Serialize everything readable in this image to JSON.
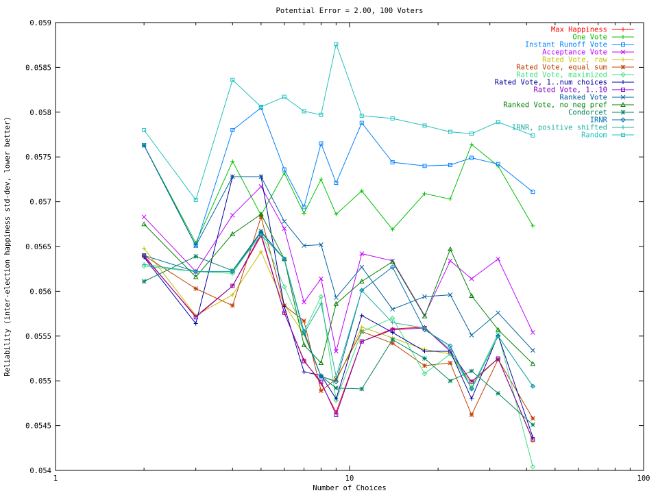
{
  "chart_data": {
    "type": "line",
    "title": "Potential Error = 2.00, 100 Voters",
    "xlabel": "Number of Choices",
    "ylabel": "Reliability (inter-election happiness std-dev, lower better)",
    "xscale": "log",
    "xlim": [
      1,
      100
    ],
    "ylim": [
      0.054,
      0.059
    ],
    "x_ticks": [
      "1",
      "10",
      "100"
    ],
    "y_ticks": [
      "0.054",
      "0.0545",
      "0.055",
      "0.0555",
      "0.056",
      "0.0565",
      "0.057",
      "0.0575",
      "0.058",
      "0.0585",
      "0.059"
    ],
    "grid": false,
    "legend_position": "top-right",
    "x": [
      2,
      3,
      4,
      5,
      6,
      7,
      8,
      9,
      11,
      14,
      18,
      22,
      26,
      32,
      42
    ],
    "series": [
      {
        "name": "Max Happiness",
        "color": "#ff0000",
        "marker": "plus",
        "values": [
          0.05639,
          0.05572,
          0.05606,
          0.05662,
          0.05576,
          0.05523,
          0.05497,
          0.05465,
          0.05544,
          0.05558,
          0.0556,
          0.05533,
          0.05499,
          0.05525,
          0.05434
        ]
      },
      {
        "name": "One Vote",
        "color": "#00c000",
        "marker": "plus",
        "values": [
          0.05763,
          0.05654,
          0.05745,
          0.05685,
          0.05732,
          0.05687,
          0.05725,
          0.05686,
          0.05712,
          0.05669,
          0.05709,
          0.05703,
          0.05764,
          0.0574,
          0.05673
        ]
      },
      {
        "name": "Instant Runoff Vote",
        "color": "#0080ff",
        "marker": "square",
        "values": [
          0.05763,
          0.05651,
          0.0578,
          0.05805,
          0.05736,
          0.05694,
          0.05765,
          0.05721,
          0.05788,
          0.05744,
          0.0574,
          0.05741,
          0.05749,
          0.05742,
          0.05711
        ]
      },
      {
        "name": "Acceptance Vote",
        "color": "#c000ff",
        "marker": "x",
        "values": [
          0.05683,
          0.05622,
          0.05685,
          0.05717,
          0.0567,
          0.05588,
          0.05614,
          0.05533,
          0.05642,
          0.05634,
          0.05573,
          0.05634,
          0.05614,
          0.05636,
          0.05554
        ]
      },
      {
        "name": "Rated Vote, raw",
        "color": "#c0c000",
        "marker": "plus",
        "values": [
          0.05648,
          0.05573,
          0.05596,
          0.05644,
          0.05585,
          0.05552,
          0.05505,
          0.055,
          0.0556,
          0.05548,
          0.05535,
          0.0553,
          0.05497,
          0.05525,
          0.05433
        ]
      },
      {
        "name": "Rated Vote, equal sum",
        "color": "#c04000",
        "marker": "star",
        "values": [
          0.0564,
          0.05603,
          0.05584,
          0.05683,
          0.05584,
          0.05567,
          0.05489,
          0.05502,
          0.05555,
          0.05542,
          0.05517,
          0.0552,
          0.05462,
          0.05524,
          0.05458
        ]
      },
      {
        "name": "Rated Vote, maximized",
        "color": "#40e080",
        "marker": "diamond",
        "values": [
          0.05628,
          0.05622,
          0.0562,
          0.05666,
          0.05605,
          0.05555,
          0.05594,
          0.05478,
          0.05555,
          0.0557,
          0.05508,
          0.0553,
          0.05492,
          0.05553,
          0.05404
        ]
      },
      {
        "name": "Rated Vote, 1..num choices",
        "color": "#0000a0",
        "marker": "plus",
        "values": [
          0.05638,
          0.05564,
          0.05728,
          0.05728,
          0.05583,
          0.0551,
          0.05506,
          0.0548,
          0.05573,
          0.05554,
          0.05533,
          0.05533,
          0.0548,
          0.05551,
          0.05437
        ]
      },
      {
        "name": "Rated Vote, 1..10",
        "color": "#8000c0",
        "marker": "square",
        "values": [
          0.0564,
          0.05571,
          0.05606,
          0.05664,
          0.05576,
          0.05522,
          0.05499,
          0.05462,
          0.05544,
          0.05557,
          0.05559,
          0.05533,
          0.05499,
          0.05525,
          0.05434
        ]
      },
      {
        "name": "Ranked Vote",
        "color": "#0060a0",
        "marker": "x",
        "values": [
          0.05763,
          0.05651,
          0.05728,
          0.05728,
          0.05678,
          0.05651,
          0.05652,
          0.05593,
          0.05627,
          0.0558,
          0.05594,
          0.05596,
          0.05551,
          0.05576,
          0.05534
        ]
      },
      {
        "name": "Ranked Vote, no neg pref",
        "color": "#008000",
        "marker": "triangle",
        "values": [
          0.05675,
          0.05616,
          0.05664,
          0.05686,
          0.05636,
          0.0554,
          0.0552,
          0.05586,
          0.05611,
          0.05633,
          0.05572,
          0.05647,
          0.05595,
          0.05557,
          0.05519
        ]
      },
      {
        "name": "Condorcet",
        "color": "#008060",
        "marker": "star",
        "values": [
          0.05611,
          0.05639,
          0.05623,
          0.05667,
          0.05636,
          0.05553,
          0.05505,
          0.05492,
          0.05491,
          0.05546,
          0.05525,
          0.055,
          0.05511,
          0.05486,
          0.05451
        ]
      },
      {
        "name": "IRNR",
        "color": "#0070b0",
        "marker": "diamond",
        "values": [
          0.0564,
          0.05622,
          0.05622,
          0.05666,
          0.05636,
          0.05555,
          0.05505,
          0.05499,
          0.05601,
          0.05627,
          0.05557,
          0.05539,
          0.05491,
          0.0555,
          0.05494
        ]
      },
      {
        "name": "IRNR, positive shifted",
        "color": "#20b0a0",
        "marker": "plus",
        "values": [
          0.0563,
          0.05622,
          0.05622,
          0.05663,
          0.05636,
          0.05553,
          0.05586,
          0.05505,
          0.05601,
          0.05565,
          0.05559,
          0.05535,
          0.05491,
          0.0555,
          0.05494
        ]
      },
      {
        "name": "Random",
        "color": "#20c0c0",
        "marker": "square",
        "values": [
          0.0578,
          0.05702,
          0.05836,
          0.05806,
          0.05817,
          0.05801,
          0.05797,
          0.05876,
          0.05796,
          0.05793,
          0.05785,
          0.05778,
          0.05776,
          0.05789,
          0.05774
        ]
      }
    ]
  }
}
